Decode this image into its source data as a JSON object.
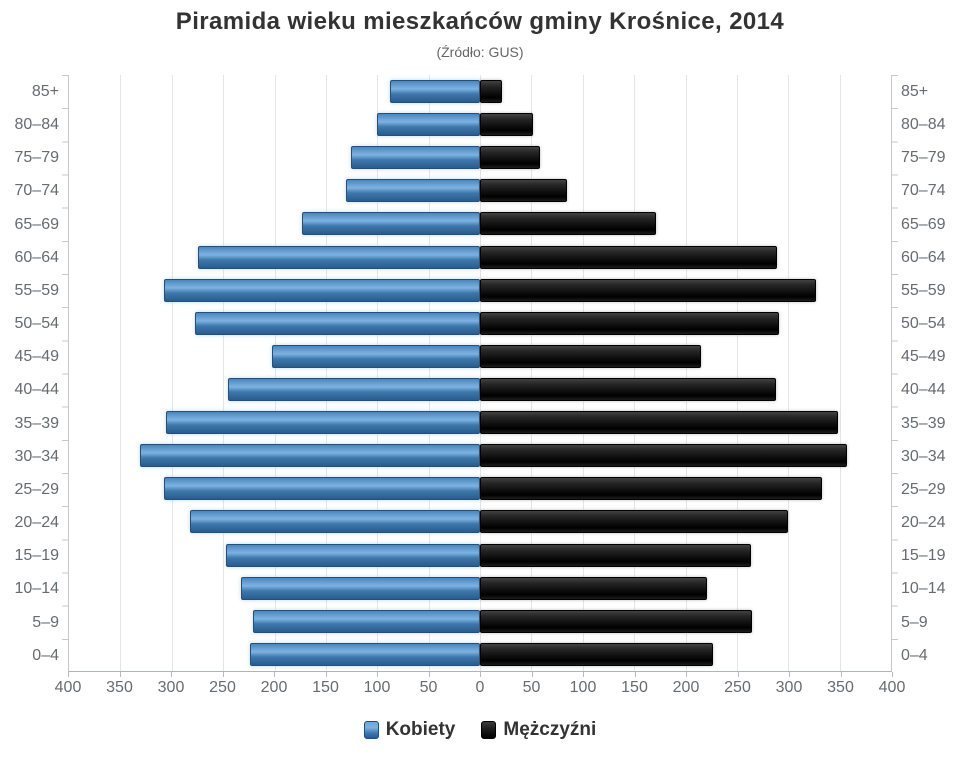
{
  "title": "Piramida wieku mieszkańców gminy Krośnice, 2014",
  "subtitle": "(Źródło: GUS)",
  "legend": {
    "women": "Kobiety",
    "men": "Mężczyźni"
  },
  "colors": {
    "women": "#4c86ba",
    "men": "#1a1a1a",
    "gridline": "#e3e6e8",
    "axis_text": "#666b70",
    "title_text": "#333333"
  },
  "chart_data": {
    "type": "bar",
    "variant": "population_pyramid",
    "title": "Piramida wieku mieszkańców gminy Krośnice, 2014",
    "subtitle": "(Źródło: GUS)",
    "grid": true,
    "legend_position": "bottom",
    "axis_max_per_side": 400,
    "x_tick_step": 50,
    "x_tick_labels": [
      "400",
      "350",
      "300",
      "250",
      "200",
      "150",
      "100",
      "50",
      "0",
      "50",
      "100",
      "150",
      "200",
      "250",
      "300",
      "350",
      "400"
    ],
    "categories": [
      "85+",
      "80–84",
      "75–79",
      "70–74",
      "65–69",
      "60–64",
      "55–59",
      "50–54",
      "45–49",
      "40–44",
      "35–39",
      "30–34",
      "25–29",
      "20–24",
      "15–19",
      "10–14",
      "5–9",
      "0–4"
    ],
    "series": [
      {
        "name": "Kobiety",
        "side": "left",
        "color": "#4c86ba",
        "values": [
          88,
          100,
          126,
          130,
          173,
          274,
          308,
          277,
          202,
          245,
          306,
          331,
          308,
          282,
          247,
          233,
          221,
          224
        ]
      },
      {
        "name": "Mężczyźni",
        "side": "right",
        "color": "#1a1a1a",
        "values": [
          21,
          52,
          58,
          85,
          171,
          289,
          327,
          291,
          215,
          288,
          348,
          357,
          333,
          300,
          264,
          221,
          265,
          227
        ]
      }
    ]
  }
}
